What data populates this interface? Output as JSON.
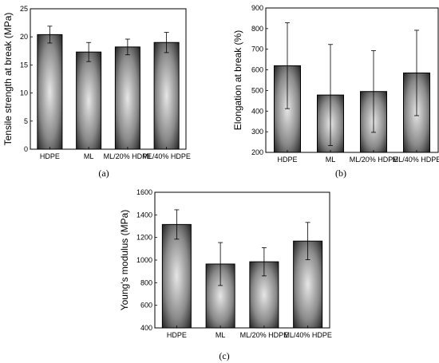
{
  "chart_data": [
    {
      "type": "bar",
      "panel_label": "(a)",
      "categories": [
        "HDPE",
        "ML",
        "ML/20% HDPE",
        "ML/40% HDPE"
      ],
      "values": [
        20.4,
        17.3,
        18.2,
        19.0
      ],
      "errors": [
        1.5,
        1.7,
        1.4,
        1.8
      ],
      "ylabel": "Tensile strength at break (MPa)",
      "xlabel": "",
      "ylim": [
        0,
        25
      ],
      "yticks": [
        0,
        5,
        10,
        15,
        20,
        25
      ]
    },
    {
      "type": "bar",
      "panel_label": "(b)",
      "categories": [
        "HDPE",
        "ML",
        "ML/20% HDPE",
        "ML/40% HDPE"
      ],
      "values": [
        620,
        478,
        495,
        585
      ],
      "errors": [
        208,
        245,
        198,
        207
      ],
      "ylabel": "Elongation at break (%)",
      "xlabel": "",
      "ylim": [
        200,
        900
      ],
      "yticks": [
        200,
        300,
        400,
        500,
        600,
        700,
        800,
        900
      ]
    },
    {
      "type": "bar",
      "panel_label": "(c)",
      "categories": [
        "HDPE",
        "ML",
        "ML/20% HDPE",
        "ML/40% HDPE"
      ],
      "values": [
        1315,
        965,
        985,
        1168
      ],
      "errors": [
        130,
        190,
        125,
        165
      ],
      "ylabel": "Young's modulus (MPa)",
      "xlabel": "",
      "ylim": [
        400,
        1600
      ],
      "yticks": [
        400,
        600,
        800,
        1000,
        1200,
        1400,
        1600
      ]
    }
  ]
}
